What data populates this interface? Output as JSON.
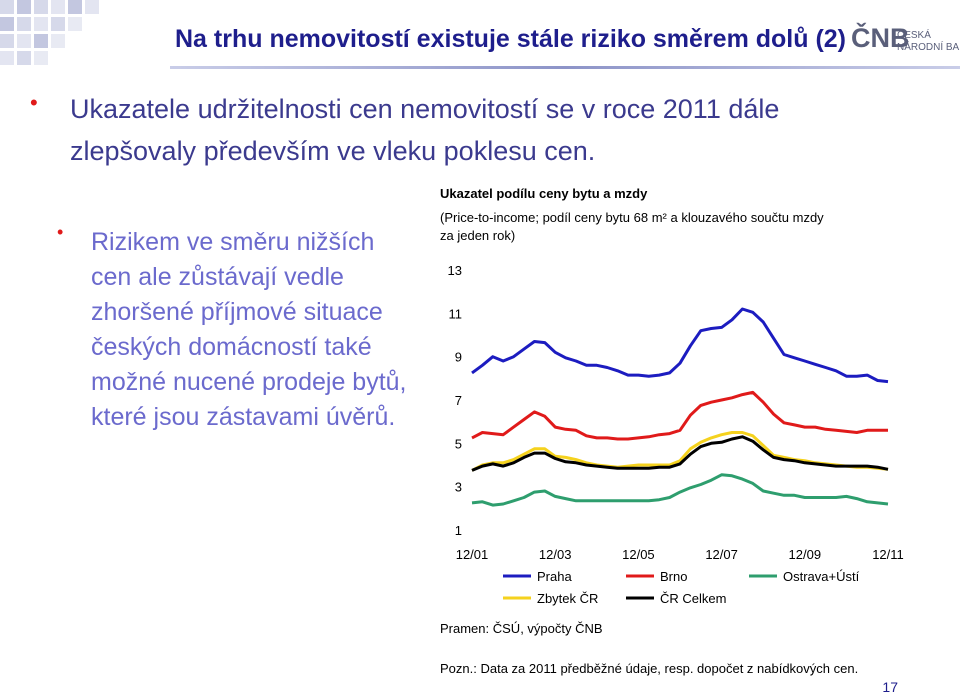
{
  "header": {
    "title": "Na trhu nemovitostí existuje stále riziko směrem dolů (2)",
    "logo": "ČNB",
    "logo_line1": "ČESKÁ",
    "logo_line2": "NÁRODNÍ BANKA"
  },
  "bullets": [
    {
      "lines": [
        "Ukazatele udržitelnosti cen nemovitostí se v roce 2011 dále",
        "zlepšovaly především ve vleku poklesu cen."
      ]
    },
    {
      "lines": [
        "Rizikem ve směru nižších",
        "cen ale zůstávají vedle",
        "zhoršené příjmové situace",
        "českých domácností také",
        "možné nucené prodeje bytů,",
        "které jsou zástavami úvěrů."
      ]
    }
  ],
  "chart_data": {
    "type": "line",
    "title": "Ukazatel podílu ceny bytu a mzdy",
    "subtitle_lines": [
      "(Price-to-income; podíl ceny bytu 68 m² a klouzavého součtu mzdy",
      "za jeden rok)"
    ],
    "categories": [
      "12/01",
      null,
      null,
      null,
      null,
      null,
      null,
      null,
      "12/03",
      null,
      null,
      null,
      null,
      null,
      null,
      null,
      "12/05",
      null,
      null,
      null,
      null,
      null,
      null,
      null,
      "12/07",
      null,
      null,
      null,
      null,
      null,
      null,
      null,
      "12/09",
      null,
      null,
      null,
      null,
      null,
      null,
      null,
      "12/11"
    ],
    "ylim": [
      1,
      13
    ],
    "yticks": [
      1,
      3,
      5,
      7,
      9,
      11,
      13
    ],
    "grid": false,
    "series": [
      {
        "name": "Praha",
        "color": "#1c1cc0",
        "values": [
          8.25,
          8.6,
          9.0,
          8.8,
          9.0,
          9.35,
          9.7,
          9.65,
          9.2,
          8.95,
          8.8,
          8.6,
          8.6,
          8.5,
          8.35,
          8.15,
          8.15,
          8.1,
          8.15,
          8.25,
          8.7,
          9.5,
          10.2,
          10.3,
          10.35,
          10.7,
          11.2,
          11.05,
          10.6,
          9.85,
          9.1,
          8.95,
          8.8,
          8.65,
          8.5,
          8.35,
          8.1,
          8.1,
          8.15,
          7.9,
          7.85
        ]
      },
      {
        "name": "Brno",
        "color": "#e01a1a",
        "values": [
          5.25,
          5.5,
          5.45,
          5.4,
          5.75,
          6.1,
          6.45,
          6.25,
          5.75,
          5.65,
          5.6,
          5.35,
          5.25,
          5.25,
          5.2,
          5.2,
          5.25,
          5.3,
          5.4,
          5.45,
          5.6,
          6.3,
          6.75,
          6.9,
          7.0,
          7.1,
          7.25,
          7.35,
          6.9,
          6.35,
          5.95,
          5.85,
          5.75,
          5.75,
          5.65,
          5.6,
          5.55,
          5.5,
          5.6,
          5.6,
          5.6
        ]
      },
      {
        "name": "Ostrava+Ústí",
        "color": "#2e9e6e",
        "values": [
          2.25,
          2.3,
          2.15,
          2.2,
          2.35,
          2.5,
          2.75,
          2.8,
          2.55,
          2.45,
          2.35,
          2.35,
          2.35,
          2.35,
          2.35,
          2.35,
          2.35,
          2.35,
          2.4,
          2.5,
          2.75,
          2.95,
          3.1,
          3.3,
          3.55,
          3.5,
          3.35,
          3.15,
          2.8,
          2.7,
          2.6,
          2.6,
          2.5,
          2.5,
          2.5,
          2.5,
          2.55,
          2.45,
          2.3,
          2.25,
          2.2
        ]
      },
      {
        "name": "Zbytek ČR",
        "color": "#f5d21e",
        "values": [
          3.75,
          4.0,
          4.1,
          4.1,
          4.25,
          4.5,
          4.75,
          4.75,
          4.4,
          4.35,
          4.25,
          4.1,
          4.0,
          3.95,
          3.9,
          3.95,
          4.0,
          4.0,
          4.0,
          4.0,
          4.2,
          4.75,
          5.05,
          5.25,
          5.4,
          5.5,
          5.5,
          5.35,
          4.9,
          4.45,
          4.35,
          4.25,
          4.2,
          4.1,
          4.05,
          4.0,
          3.95,
          3.9,
          3.9,
          3.85,
          3.8
        ]
      },
      {
        "name": "ČR Celkem",
        "color": "#000000",
        "values": [
          3.75,
          3.95,
          4.05,
          3.95,
          4.1,
          4.35,
          4.55,
          4.55,
          4.3,
          4.15,
          4.1,
          4.0,
          3.95,
          3.9,
          3.85,
          3.85,
          3.85,
          3.85,
          3.9,
          3.9,
          4.05,
          4.5,
          4.85,
          5.0,
          5.05,
          5.2,
          5.3,
          5.1,
          4.7,
          4.35,
          4.25,
          4.2,
          4.1,
          4.05,
          4.0,
          3.95,
          3.95,
          3.95,
          3.95,
          3.9,
          3.8
        ]
      }
    ],
    "source": "Pramen: ČSÚ, výpočty ČNB",
    "note": "Pozn.: Data za 2011 předběžné údaje, resp. dopočet z nabídkových cen."
  },
  "page_number": "17"
}
